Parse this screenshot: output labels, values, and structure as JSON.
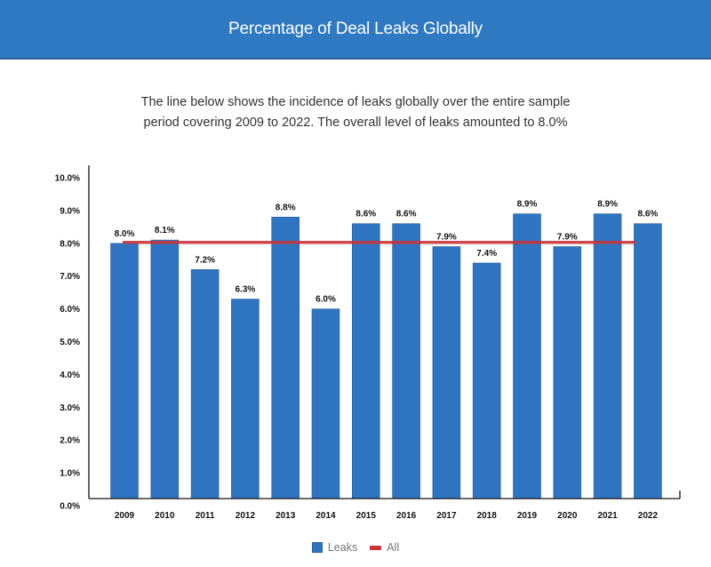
{
  "header": {
    "title": "Percentage of Deal Leaks Globally"
  },
  "description": {
    "lines": [
      "The line below shows the incidence of leaks globally over the entire sample",
      "period covering 2009 to 2022. The overall level of leaks amounted to 8.0%"
    ]
  },
  "colors": {
    "header_bg": "#2f78c2",
    "bar": "#2f74c0",
    "line": "#c9343a"
  },
  "chart_data": {
    "type": "bar",
    "title": "Percentage of Deal Leaks Globally",
    "xlabel": "",
    "ylabel": "",
    "categories": [
      "2009",
      "2010",
      "2011",
      "2012",
      "2013",
      "2014",
      "2015",
      "2016",
      "2017",
      "2018",
      "2019",
      "2020",
      "2021",
      "2022"
    ],
    "series": [
      {
        "name": "Leaks",
        "type": "bar",
        "values": [
          8.0,
          8.1,
          7.2,
          6.3,
          8.8,
          6.0,
          8.6,
          8.6,
          7.9,
          7.4,
          8.9,
          7.9,
          8.9,
          8.6
        ],
        "labels": [
          "8.0%",
          "8.1%",
          "7.2%",
          "6.3%",
          "8.8%",
          "6.0%",
          "8.6%",
          "8.6%",
          "7.9%",
          "7.4%",
          "8.9%",
          "7.9%",
          "8.9%",
          "8.6%"
        ]
      },
      {
        "name": "All",
        "type": "line",
        "value": 8.0
      }
    ],
    "ylim": [
      0,
      10
    ],
    "yticks": [
      "0.0%",
      "1.0%",
      "2.0%",
      "3.0%",
      "4.0%",
      "5.0%",
      "6.0%",
      "7.0%",
      "8.0%",
      "9.0%",
      "10.0%"
    ],
    "grid": false,
    "legend": {
      "position": "bottom-center",
      "entries": [
        "Leaks",
        "All"
      ]
    }
  }
}
